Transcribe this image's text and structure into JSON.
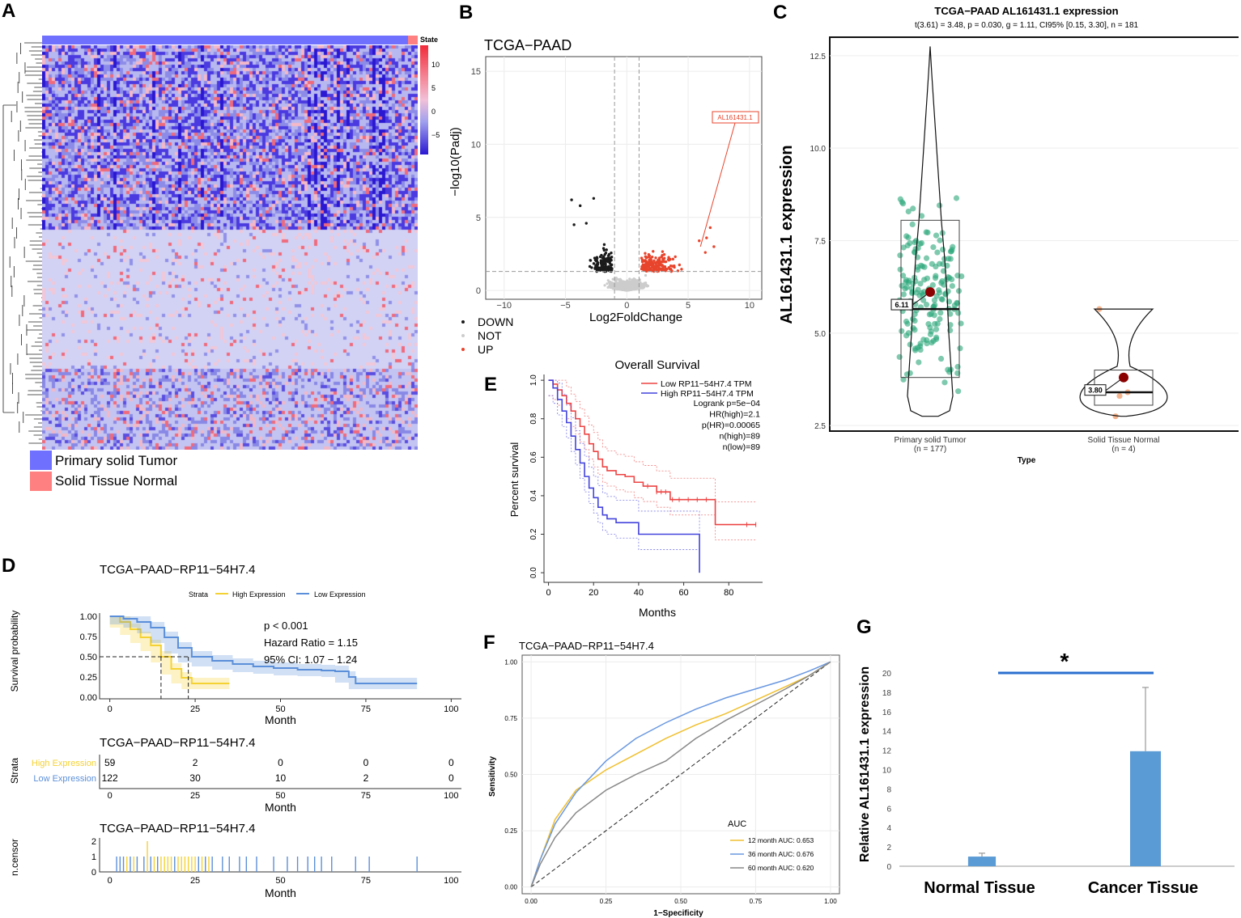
{
  "panel_labels": {
    "a": "A",
    "b": "B",
    "c": "C",
    "d": "D",
    "e": "E",
    "f": "F",
    "g": "G"
  },
  "heatmap": {
    "state_label": "State",
    "legend_ticks": [
      "10",
      "5",
      "0",
      "−5"
    ],
    "groups": [
      "Primary solid Tumor",
      "Solid Tissue Normal"
    ],
    "colors": {
      "tumor": "#7070ff",
      "normal": "#ff8080",
      "low": "#2a18d2",
      "mid": "#d0d0f5",
      "high": "#f22a3a"
    }
  },
  "chart_data": [
    {
      "id": "volcano",
      "type": "scatter",
      "title": "TCGA−PAAD",
      "xlabel": "Log2FoldChange",
      "ylabel": "−log10(Padj)",
      "xlim": [
        -11.5,
        11
      ],
      "ylim": [
        -0.6,
        16
      ],
      "xticks": [
        "−10",
        "−5",
        "0",
        "5",
        "10"
      ],
      "yticks": [
        "0",
        "5",
        "10",
        "15"
      ],
      "vlines": [
        -1,
        1
      ],
      "hline": 1.3,
      "legend": [
        "DOWN",
        "NOT",
        "UP"
      ],
      "annotation": {
        "label": "AL161431.1",
        "x": 6.0,
        "y": 3.0
      },
      "colors": {
        "down": "#1a1a1a",
        "not": "#cccccc",
        "up": "#e8442c"
      }
    },
    {
      "id": "violin",
      "type": "box",
      "title": "TCGA−PAAD AL161431.1 expression",
      "subtitle": "t(3.61) = 3.48, p = 0.030, g = 1.11, CI95% [0.15, 3.30], n = 181",
      "xlabel": "Type",
      "ylabel": "AL161431.1 expression",
      "ylim": [
        2.35,
        13.0
      ],
      "yticks": [
        "2.5",
        "5.0",
        "7.5",
        "10.0",
        "12.5"
      ],
      "categories": [
        "Primary solid Tumor",
        "Solid Tissue Normal"
      ],
      "counts": [
        "(n = 177)",
        "(n = 4)"
      ],
      "means": [
        6.11,
        3.8
      ],
      "mean_labels": [
        "6.11",
        "3.80"
      ],
      "medians": [
        5.65,
        3.4
      ],
      "q1": [
        3.8,
        3.05
      ],
      "q3": [
        8.05,
        4.0
      ],
      "min": [
        2.75,
        2.75
      ],
      "max": [
        12.75,
        5.65
      ],
      "colors": {
        "tumor": "#2aa77a",
        "normal": "#f3a070",
        "mean": "#8b0000"
      }
    },
    {
      "id": "gepia_km",
      "type": "line",
      "title": "Overall Survival",
      "xlabel": "Months",
      "ylabel": "Percent survival",
      "xlim": [
        -2,
        95
      ],
      "ylim": [
        -0.05,
        1.03
      ],
      "xticks": [
        "0",
        "20",
        "40",
        "60",
        "80"
      ],
      "yticks": [
        "0.0",
        "0.2",
        "0.4",
        "0.6",
        "0.8",
        "1.0"
      ],
      "legend": [
        "Low RP11−54H7.4 TPM",
        "High RP11−54H7.4 TPM"
      ],
      "stats": [
        "Logrank p=5e−04",
        "HR(high)=2.1",
        "p(HR)=0.00065",
        "n(high)=89",
        "n(low)=89"
      ],
      "series": [
        {
          "name": "Low RP11−54H7.4 TPM",
          "color": "#ee4444",
          "x": [
            0,
            2,
            4,
            6,
            8,
            10,
            12,
            14,
            16,
            18,
            20,
            22,
            24,
            26,
            30,
            34,
            38,
            42,
            48,
            54,
            60,
            66,
            70,
            74,
            80,
            92
          ],
          "y": [
            1.0,
            0.98,
            0.95,
            0.92,
            0.88,
            0.84,
            0.8,
            0.76,
            0.72,
            0.67,
            0.63,
            0.59,
            0.55,
            0.53,
            0.51,
            0.5,
            0.47,
            0.45,
            0.42,
            0.38,
            0.38,
            0.38,
            0.38,
            0.25,
            0.25,
            0.25
          ]
        },
        {
          "name": "High RP11−54H7.4 TPM",
          "color": "#4444dd",
          "x": [
            0,
            2,
            4,
            6,
            8,
            10,
            12,
            14,
            16,
            18,
            20,
            22,
            24,
            26,
            30,
            36,
            40,
            44,
            50,
            56,
            62,
            67
          ],
          "y": [
            1.0,
            0.96,
            0.9,
            0.84,
            0.78,
            0.71,
            0.64,
            0.57,
            0.5,
            0.44,
            0.39,
            0.34,
            0.3,
            0.28,
            0.26,
            0.26,
            0.2,
            0.2,
            0.2,
            0.2,
            0.2,
            0.0
          ]
        }
      ]
    },
    {
      "id": "km_d",
      "type": "line",
      "title": "TCGA−PAAD−RP11−54H7.4",
      "xlabel": "Month",
      "ylabel": "Survival probability",
      "xlim": [
        -3,
        103
      ],
      "ylim": [
        -0.02,
        1.04
      ],
      "xticks": [
        "0",
        "25",
        "50",
        "75",
        "100"
      ],
      "yticks": [
        "0.00",
        "0.25",
        "0.50",
        "0.75",
        "1.00"
      ],
      "legend_title": "Strata",
      "legend": [
        "High Expression",
        "Low Expression"
      ],
      "annotations": [
        "p < 0.001",
        "Hazard Ratio = 1.15",
        "95% CI:  1.07 − 1.24"
      ],
      "median_times": [
        15,
        23
      ],
      "series": [
        {
          "name": "High Expression",
          "color": "#f5d233",
          "x": [
            0,
            3,
            6,
            9,
            12,
            15,
            18,
            21,
            24,
            28,
            32,
            35
          ],
          "y": [
            1.0,
            0.93,
            0.84,
            0.74,
            0.64,
            0.5,
            0.35,
            0.24,
            0.17,
            0.17,
            0.17,
            0.17
          ]
        },
        {
          "name": "Low Expression",
          "color": "#5b8fd9",
          "x": [
            0,
            4,
            8,
            12,
            16,
            20,
            24,
            30,
            36,
            42,
            48,
            55,
            62,
            66,
            70,
            72,
            90
          ],
          "y": [
            1.0,
            0.97,
            0.93,
            0.86,
            0.74,
            0.61,
            0.5,
            0.45,
            0.41,
            0.38,
            0.36,
            0.34,
            0.33,
            0.32,
            0.25,
            0.17,
            0.17
          ]
        }
      ]
    },
    {
      "id": "risk_table",
      "type": "table",
      "title": "TCGA−PAAD−RP11−54H7.4",
      "ylabel": "Strata",
      "xlabel": "Month",
      "xticks": [
        "0",
        "25",
        "50",
        "75",
        "100"
      ],
      "rows": [
        {
          "name": "High Expression",
          "color": "#f5d233",
          "values": [
            "59",
            "2",
            "0",
            "0",
            "0"
          ]
        },
        {
          "name": "Low Expression",
          "color": "#5b8fd9",
          "values": [
            "122",
            "30",
            "10",
            "2",
            "0"
          ]
        }
      ]
    },
    {
      "id": "ncensor",
      "type": "bar",
      "title": "TCGA−PAAD−RP11−54H7.4",
      "ylabel": "n.censor",
      "xlabel": "Month",
      "xticks": [
        "0",
        "25",
        "50",
        "75",
        "100"
      ],
      "yticks": [
        "0",
        "1",
        "2"
      ],
      "high_times": [
        5,
        7,
        11,
        13,
        15,
        16,
        17,
        18,
        20,
        21,
        22,
        23,
        24,
        25,
        27,
        29
      ],
      "low_times": [
        2,
        3,
        4,
        6,
        8,
        10,
        12,
        14,
        19,
        26,
        28,
        30,
        33,
        35,
        38,
        40,
        43,
        48,
        52,
        55,
        58,
        60,
        62,
        65,
        72,
        76,
        90
      ],
      "double_times": [
        9,
        11
      ]
    },
    {
      "id": "roc",
      "type": "line",
      "title": "TCGA−PAAD−RP11−54H7.4",
      "xlabel": "1−Specificity",
      "ylabel": "Sensitivity",
      "xticks": [
        "0.00",
        "0.25",
        "0.50",
        "0.75",
        "1.00"
      ],
      "yticks": [
        "0.00",
        "0.25",
        "0.50",
        "0.75",
        "1.00"
      ],
      "legend_title": "AUC",
      "series": [
        {
          "name": "12 month AUC: 0.653",
          "color": "#f0c030",
          "x": [
            0,
            0.03,
            0.08,
            0.15,
            0.25,
            0.35,
            0.45,
            0.55,
            0.65,
            0.75,
            0.85,
            0.93,
            1
          ],
          "y": [
            0,
            0.12,
            0.3,
            0.43,
            0.52,
            0.59,
            0.66,
            0.72,
            0.77,
            0.83,
            0.89,
            0.94,
            1
          ]
        },
        {
          "name": "36 month AUC: 0.676",
          "color": "#6a98e0",
          "x": [
            0,
            0.03,
            0.08,
            0.15,
            0.25,
            0.35,
            0.45,
            0.55,
            0.65,
            0.75,
            0.85,
            0.93,
            1
          ],
          "y": [
            0,
            0.12,
            0.28,
            0.42,
            0.56,
            0.66,
            0.73,
            0.79,
            0.84,
            0.88,
            0.92,
            0.96,
            1
          ]
        },
        {
          "name": "60 month AUC: 0.620",
          "color": "#888888",
          "x": [
            0,
            0.03,
            0.08,
            0.15,
            0.25,
            0.35,
            0.45,
            0.55,
            0.65,
            0.75,
            0.85,
            0.93,
            1
          ],
          "y": [
            0,
            0.1,
            0.22,
            0.33,
            0.43,
            0.5,
            0.56,
            0.66,
            0.74,
            0.81,
            0.88,
            0.94,
            1
          ]
        }
      ]
    },
    {
      "id": "qpcr",
      "type": "bar",
      "categories": [
        "Normal Tissue",
        "Cancer Tissue"
      ],
      "values": [
        1.0,
        11.9
      ],
      "errors": [
        0.35,
        6.6
      ],
      "ylabel": "Relative AL161431.1 expression",
      "ylim": [
        0,
        20
      ],
      "yticks": [
        "0",
        "2",
        "4",
        "6",
        "8",
        "10",
        "12",
        "14",
        "16",
        "18",
        "20"
      ],
      "significance": "*",
      "color": "#5b9bd5"
    }
  ]
}
